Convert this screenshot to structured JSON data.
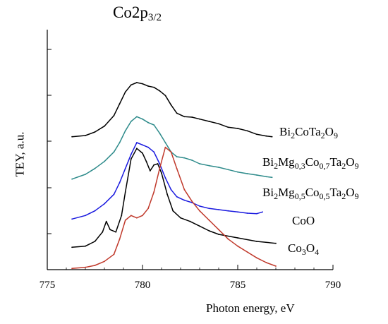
{
  "chart_data": {
    "type": "line",
    "title": "Co2p3/2",
    "xlabel": "Photon energy, eV",
    "ylabel": "TEY, a.u.",
    "xlim": [
      775,
      790
    ],
    "xticks": [
      775,
      780,
      785,
      790
    ],
    "grid": false,
    "series": [
      {
        "name": "Bi2CoTa2O9",
        "color": "#000000",
        "offset": 5.6,
        "x": [
          776.3,
          777.0,
          777.5,
          778.0,
          778.5,
          778.8,
          779.1,
          779.4,
          779.7,
          780.0,
          780.3,
          780.6,
          780.9,
          781.2,
          781.5,
          781.8,
          782.2,
          782.6,
          783.0,
          783.5,
          784.0,
          784.5,
          785.0,
          785.5,
          786.0,
          786.5,
          786.8
        ],
        "y": [
          0.05,
          0.1,
          0.25,
          0.5,
          0.95,
          1.45,
          1.95,
          2.25,
          2.35,
          2.3,
          2.2,
          2.15,
          2.0,
          1.8,
          1.4,
          1.05,
          0.9,
          0.88,
          0.8,
          0.7,
          0.6,
          0.45,
          0.4,
          0.3,
          0.15,
          0.08,
          0.05
        ]
      },
      {
        "name": "Bi2Mg0,3Co0,7Ta2O9",
        "color": "#2e8b8b",
        "offset": 3.8,
        "x": [
          776.3,
          777.0,
          777.5,
          778.0,
          778.5,
          778.8,
          779.1,
          779.4,
          779.7,
          780.0,
          780.3,
          780.6,
          780.9,
          781.2,
          781.5,
          781.8,
          782.2,
          782.6,
          783.0,
          783.5,
          784.0,
          784.5,
          785.0,
          785.5,
          786.0,
          786.5,
          786.8
        ],
        "y": [
          0.05,
          0.25,
          0.5,
          0.8,
          1.2,
          1.6,
          2.1,
          2.5,
          2.7,
          2.6,
          2.45,
          2.35,
          2.0,
          1.6,
          1.2,
          1.0,
          0.95,
          0.85,
          0.7,
          0.62,
          0.55,
          0.45,
          0.35,
          0.28,
          0.22,
          0.15,
          0.12
        ]
      },
      {
        "name": "Bi2Mg0,5Co0,5Ta2O9",
        "color": "#1a1adf",
        "offset": 2.1,
        "x": [
          776.3,
          777.0,
          777.5,
          778.0,
          778.5,
          778.8,
          779.1,
          779.4,
          779.7,
          780.0,
          780.3,
          780.6,
          780.9,
          781.2,
          781.5,
          781.8,
          782.2,
          782.6,
          783.0,
          783.5,
          784.0,
          784.5,
          785.0,
          785.5,
          786.0,
          786.3
        ],
        "y": [
          0.05,
          0.2,
          0.4,
          0.7,
          1.1,
          1.6,
          2.2,
          2.8,
          3.3,
          3.2,
          3.1,
          2.9,
          2.4,
          1.8,
          1.3,
          1.0,
          0.85,
          0.75,
          0.6,
          0.5,
          0.45,
          0.4,
          0.35,
          0.3,
          0.28,
          0.35
        ]
      },
      {
        "name": "CoO",
        "color": "#000000",
        "offset": 0.9,
        "x": [
          776.3,
          777.0,
          777.5,
          777.9,
          778.1,
          778.3,
          778.6,
          778.9,
          779.1,
          779.4,
          779.7,
          780.0,
          780.2,
          780.4,
          780.6,
          780.8,
          781.0,
          781.3,
          781.6,
          782.0,
          782.5,
          783.0,
          783.5,
          784.0,
          785.0,
          786.0,
          787.0
        ],
        "y": [
          0.05,
          0.1,
          0.3,
          0.7,
          1.15,
          0.8,
          0.7,
          1.4,
          2.4,
          3.8,
          4.25,
          4.05,
          3.7,
          3.3,
          3.55,
          3.6,
          3.2,
          2.3,
          1.6,
          1.3,
          1.15,
          0.95,
          0.75,
          0.6,
          0.45,
          0.3,
          0.22
        ]
      },
      {
        "name": "Co3O4",
        "color": "#c0392b",
        "offset": 0.0,
        "x": [
          776.3,
          777.0,
          777.5,
          778.0,
          778.5,
          778.8,
          779.1,
          779.4,
          779.7,
          780.0,
          780.3,
          780.6,
          780.9,
          781.2,
          781.5,
          781.8,
          782.2,
          782.6,
          783.0,
          783.5,
          784.0,
          784.5,
          785.0,
          785.5,
          786.0,
          786.5,
          787.0
        ],
        "y": [
          0.05,
          0.1,
          0.18,
          0.35,
          0.65,
          1.3,
          2.1,
          2.3,
          2.2,
          2.3,
          2.6,
          3.3,
          4.3,
          5.2,
          5.0,
          4.3,
          3.4,
          2.9,
          2.5,
          2.1,
          1.7,
          1.3,
          1.0,
          0.75,
          0.5,
          0.3,
          0.15
        ]
      }
    ]
  },
  "labels": {
    "title_main": "Co2p",
    "title_sub": "3/2",
    "s1_parts": [
      "Bi",
      "2",
      "CoTa",
      "2",
      "O",
      "9"
    ],
    "s2_parts": [
      "Bi",
      "2",
      "Mg",
      "0,3",
      "Co",
      "0,7",
      "Ta",
      "2",
      "O",
      "9"
    ],
    "s3_parts": [
      "Bi",
      "2",
      "Mg",
      "0,5",
      "Co",
      "0,5",
      "Ta",
      "2",
      "O",
      "9"
    ],
    "s4": "CoO",
    "s5_parts": [
      "Co",
      "3",
      "O",
      "4"
    ]
  }
}
